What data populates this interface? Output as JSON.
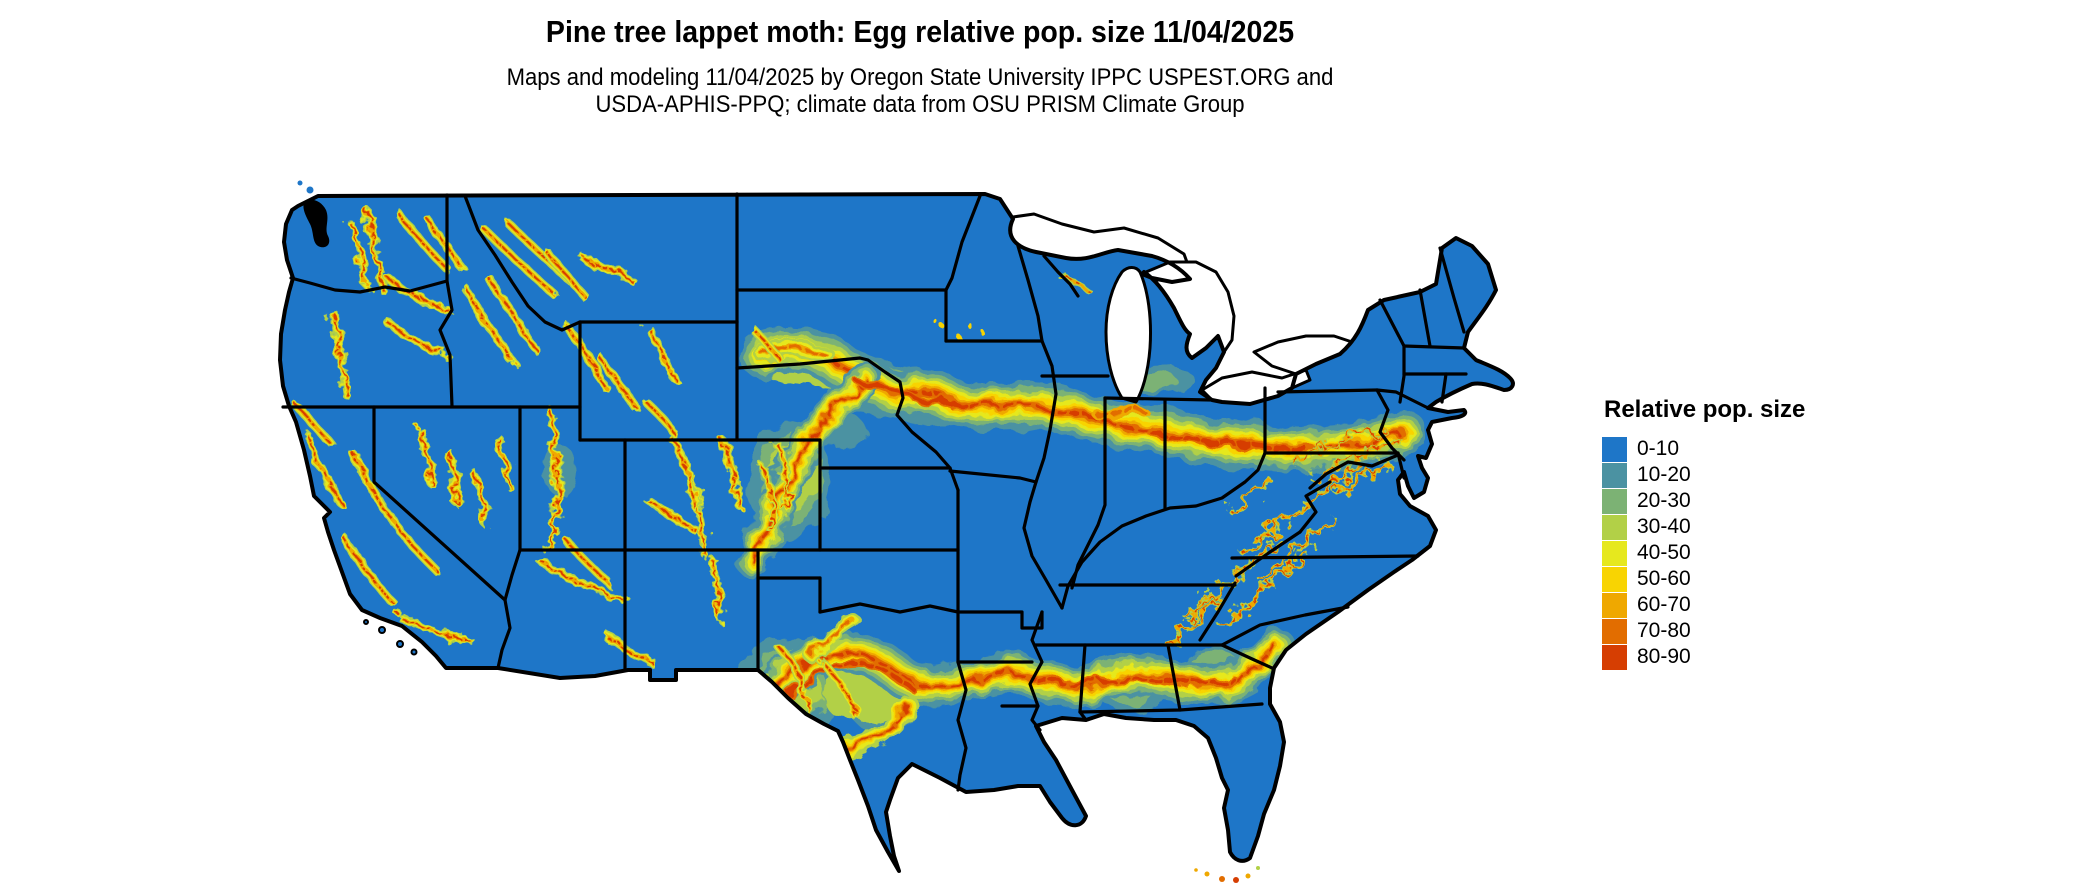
{
  "header": {
    "title": "Pine tree lappet moth: Egg relative pop. size 11/04/2025",
    "subtitle_line1": "Maps and modeling 11/04/2025 by Oregon State University IPPC USPEST.ORG and",
    "subtitle_line2": "USDA-APHIS-PPQ; climate data from OSU PRISM Climate Group"
  },
  "legend": {
    "title": "Relative pop. size",
    "entries": [
      {
        "label": "0-10",
        "color": "#1e76c8"
      },
      {
        "label": "10-20",
        "color": "#4b92a2"
      },
      {
        "label": "20-30",
        "color": "#7cb274"
      },
      {
        "label": "30-40",
        "color": "#b2d047"
      },
      {
        "label": "40-50",
        "color": "#e6e81e"
      },
      {
        "label": "50-60",
        "color": "#f8d402"
      },
      {
        "label": "60-70",
        "color": "#efa800"
      },
      {
        "label": "70-80",
        "color": "#e26d00"
      },
      {
        "label": "80-90",
        "color": "#d63e02"
      }
    ]
  },
  "map": {
    "region": "Contiguous United States",
    "land_base_color": "#1e76c8",
    "border_color": "#000000",
    "water_color": "#ffffff"
  }
}
